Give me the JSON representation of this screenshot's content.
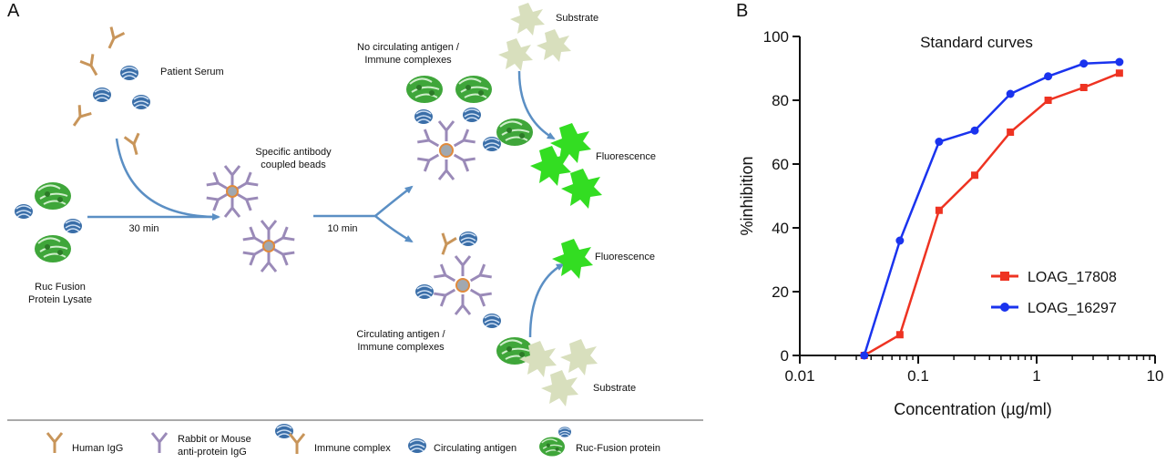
{
  "panel_a": {
    "label": "A",
    "patient_serum": "Patient Serum",
    "ruc_lysate": [
      "Ruc Fusion",
      "Protein Lysate"
    ],
    "step1_time": "30 min",
    "beads_label": [
      "Specific antibody",
      "coupled beads"
    ],
    "step2_time": "10 min",
    "no_antigen": [
      "No circulating antigen /",
      "Immune complexes"
    ],
    "with_antigen": [
      "Circulating antigen /",
      "Immune complexes"
    ],
    "substrate_top": "Substrate",
    "substrate_bottom": "Substrate",
    "fluorescence_top": "Fluorescence",
    "fluorescence_bottom": "Fluorescence",
    "legend": {
      "human_igg": "Human IgG",
      "rabbit_igg": [
        "Rabbit or Mouse",
        "anti-protein IgG"
      ],
      "immune_complex": "Immune complex",
      "circulating_antigen": "Circulating antigen",
      "ruc_fusion": "Ruc-Fusion protein"
    },
    "colors": {
      "human_igg": "#c8955a",
      "rabbit_igg": "#9a8ab8",
      "antigen": "#3a6ea8",
      "ruc": "#3fa63a",
      "substrate": "#d8dfbd",
      "fluorescence": "#33dd22",
      "arrow": "#5b8fc4"
    }
  },
  "panel_b": {
    "label": "B",
    "chart_data": {
      "type": "line",
      "title": "Standard curves",
      "xlabel": "Concentration (µg/ml)",
      "ylabel": "%inhibition",
      "x_scale": "log",
      "xlim": [
        0.01,
        10
      ],
      "ylim": [
        0,
        100
      ],
      "x_ticks": [
        0.01,
        0.1,
        1,
        10
      ],
      "x_tick_labels": [
        "0.01",
        "0.1",
        "1",
        "10"
      ],
      "y_ticks": [
        0,
        20,
        40,
        60,
        80,
        100
      ],
      "y_tick_labels": [
        "0",
        "20",
        "40",
        "60",
        "80",
        "100"
      ],
      "legend_position": "bottom-right",
      "series": [
        {
          "name": "LOAG_17808",
          "marker": "square",
          "color": "#ee3322",
          "x": [
            0.035,
            0.07,
            0.15,
            0.3,
            0.6,
            1.25,
            2.5,
            5
          ],
          "y": [
            0,
            6.5,
            45.5,
            56.5,
            70,
            80,
            84,
            88.5
          ]
        },
        {
          "name": "LOAG_16297",
          "marker": "circle",
          "color": "#1a33ee",
          "x": [
            0.035,
            0.07,
            0.15,
            0.3,
            0.6,
            1.25,
            2.5,
            5
          ],
          "y": [
            0,
            36,
            67,
            70.5,
            82,
            87.5,
            91.5,
            92
          ]
        }
      ]
    }
  }
}
